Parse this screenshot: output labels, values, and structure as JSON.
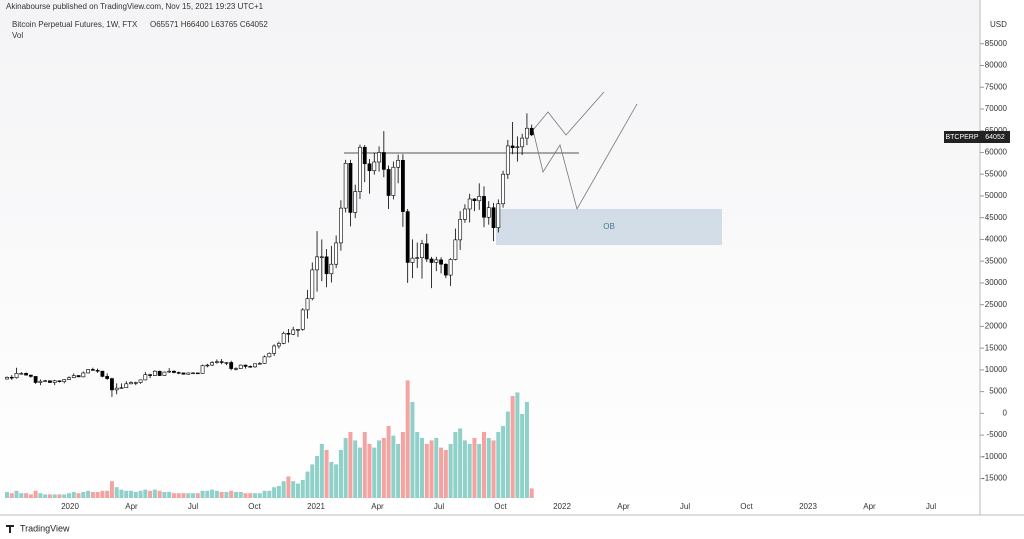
{
  "chart_data": {
    "type": "candlestick",
    "publisher": "Akinabourse published on TradingView.com, Nov 15, 2021 19:23 UTC+1",
    "title": "Bitcoin Perpetual Futures, 1W, FTX",
    "ohlc_label": "O65571 H66400 L63765 C64052",
    "pane_label": "Vol",
    "axis_unit": "USD",
    "symbol": "BTCPERP",
    "annotation": "OB",
    "brand": "TradingView",
    "up_color": "#ffffff",
    "down_color": "#000000",
    "volume_up_color": "#8fd0c8",
    "volume_down_color": "#f5a3a0",
    "ylim": [
      -19000,
      90000
    ],
    "yticks": [
      -15000,
      -10000,
      -5000,
      0,
      5000,
      10000,
      15000,
      20000,
      25000,
      30000,
      35000,
      40000,
      45000,
      50000,
      55000,
      60000,
      65000,
      70000,
      75000,
      80000,
      85000
    ],
    "xticks": [
      "2020",
      "Apr",
      "Jul",
      "Oct",
      "2021",
      "Apr",
      "Jul",
      "Oct",
      "2022",
      "Apr",
      "Jul",
      "Oct",
      "2023",
      "Apr",
      "Jul"
    ],
    "volume_lim": [
      0,
      100
    ],
    "open": [
      7900,
      8300,
      8200,
      9200,
      9200,
      8800,
      8500,
      7100,
      7400,
      7500,
      7100,
      7500,
      7300,
      7800,
      8200,
      8700,
      8400,
      9300,
      10100,
      9900,
      9700,
      8500,
      8000,
      5400,
      5800,
      5900,
      6800,
      7100,
      7100,
      7700,
      8900,
      8700,
      9700,
      8700,
      9500,
      9700,
      9400,
      9300,
      9000,
      9300,
      9300,
      9200,
      11000,
      11100,
      11700,
      11900,
      11700,
      11700,
      10300,
      10300,
      11100,
      10800,
      10700,
      11400,
      11500,
      13000,
      13800,
      15500,
      16100,
      18400,
      18200,
      19200,
      19300,
      23800,
      26400,
      33000,
      36000,
      36000,
      32100,
      34300,
      39200,
      47200,
      57500,
      46200,
      51000,
      61200,
      57400,
      55800,
      57800,
      60000,
      56100,
      50100,
      56600,
      58200,
      46400,
      34700,
      35700,
      35800,
      39000,
      35500,
      34700,
      35300,
      34300,
      31800,
      35400,
      39900,
      44600,
      47000,
      49300,
      48900,
      49900,
      45100,
      47300,
      42700,
      48200,
      55000,
      61500,
      61100,
      61300,
      63300,
      65571
    ],
    "high": [
      8500,
      8800,
      10500,
      9500,
      9400,
      8900,
      8500,
      7800,
      7700,
      7600,
      7700,
      7600,
      7900,
      8500,
      9200,
      8800,
      9600,
      10200,
      10500,
      10300,
      9800,
      9200,
      8200,
      6900,
      6900,
      7400,
      7400,
      7300,
      7800,
      9500,
      9100,
      9900,
      9800,
      9600,
      10400,
      9900,
      9600,
      9400,
      9400,
      9500,
      9300,
      11200,
      11400,
      12000,
      12400,
      12500,
      11800,
      12100,
      10600,
      11200,
      11200,
      11000,
      11500,
      11800,
      13300,
      14000,
      15900,
      16500,
      18800,
      19400,
      19900,
      19400,
      24200,
      28400,
      34700,
      41900,
      40000,
      37800,
      38500,
      40900,
      49000,
      58300,
      58300,
      52600,
      61800,
      61700,
      58500,
      60000,
      61400,
      64900,
      57000,
      57900,
      59500,
      59600,
      47000,
      40000,
      39300,
      39900,
      41300,
      36000,
      36000,
      35900,
      34500,
      35700,
      42500,
      46500,
      48100,
      50500,
      49500,
      52900,
      52200,
      48800,
      48400,
      49200,
      55800,
      62900,
      67000,
      63700,
      64300,
      69000,
      66400
    ],
    "low": [
      7800,
      7700,
      8000,
      8900,
      8700,
      8200,
      6800,
      6500,
      7200,
      7000,
      6500,
      7100,
      6900,
      7700,
      8100,
      8300,
      8300,
      9200,
      9800,
      9300,
      8300,
      7700,
      3800,
      4400,
      5700,
      5900,
      6700,
      6500,
      6800,
      7600,
      8100,
      8600,
      8600,
      8600,
      9300,
      9200,
      9000,
      8900,
      8900,
      9100,
      9000,
      9100,
      10600,
      10900,
      11400,
      11300,
      11100,
      9900,
      9900,
      10200,
      10300,
      10500,
      10500,
      11200,
      11400,
      12900,
      13200,
      14900,
      15900,
      16300,
      18000,
      17600,
      19000,
      21800,
      26000,
      28000,
      30400,
      29000,
      30100,
      33400,
      37400,
      46200,
      43000,
      44900,
      49300,
      53200,
      50500,
      54900,
      55600,
      54300,
      47000,
      49200,
      52900,
      42900,
      30000,
      31100,
      33400,
      31000,
      34800,
      28800,
      32700,
      32200,
      31100,
      29300,
      35200,
      37600,
      43800,
      43900,
      46500,
      46800,
      42800,
      43400,
      39600,
      41600,
      47300,
      53900,
      59600,
      57900,
      59400,
      61700,
      63765
    ],
    "close": [
      8300,
      8200,
      9200,
      9200,
      8800,
      8500,
      7100,
      7400,
      7500,
      7100,
      7500,
      7300,
      7800,
      8200,
      8700,
      8400,
      9300,
      10100,
      9900,
      9700,
      8500,
      8000,
      5400,
      5800,
      5900,
      6800,
      7100,
      7100,
      7700,
      8900,
      8700,
      9700,
      8700,
      9500,
      9700,
      9400,
      9300,
      9000,
      9300,
      9300,
      9200,
      11000,
      11100,
      11700,
      11900,
      11700,
      11700,
      10300,
      10300,
      11100,
      10800,
      10700,
      11400,
      11500,
      13000,
      13800,
      15500,
      16100,
      18400,
      18200,
      19200,
      19300,
      23800,
      26400,
      33000,
      36000,
      36000,
      32100,
      34300,
      39200,
      47200,
      57500,
      46200,
      51000,
      61200,
      57400,
      55800,
      57800,
      60000,
      56100,
      50100,
      56600,
      58200,
      46400,
      34700,
      35700,
      35800,
      39000,
      35500,
      34700,
      35300,
      34300,
      31800,
      35400,
      39900,
      44600,
      47000,
      49300,
      48900,
      49900,
      45100,
      47300,
      42700,
      48200,
      55000,
      61500,
      61100,
      61300,
      63300,
      65571,
      64052
    ],
    "volume": [
      5,
      4,
      6,
      4,
      4,
      3,
      6,
      4,
      3,
      3,
      3,
      3,
      3,
      4,
      5,
      4,
      5,
      6,
      5,
      5,
      6,
      6,
      14,
      9,
      7,
      6,
      6,
      5,
      6,
      7,
      6,
      7,
      6,
      5,
      5,
      4,
      4,
      4,
      4,
      4,
      4,
      6,
      6,
      7,
      6,
      5,
      5,
      6,
      5,
      5,
      4,
      4,
      4,
      4,
      6,
      6,
      9,
      10,
      14,
      18,
      14,
      12,
      15,
      22,
      28,
      35,
      45,
      40,
      30,
      28,
      40,
      50,
      55,
      48,
      42,
      55,
      45,
      42,
      48,
      50,
      60,
      52,
      45,
      55,
      98,
      80,
      55,
      50,
      45,
      48,
      50,
      42,
      40,
      45,
      55,
      58,
      48,
      45,
      50,
      45,
      55,
      50,
      48,
      55,
      60,
      72,
      85,
      88,
      70,
      80,
      8
    ]
  }
}
